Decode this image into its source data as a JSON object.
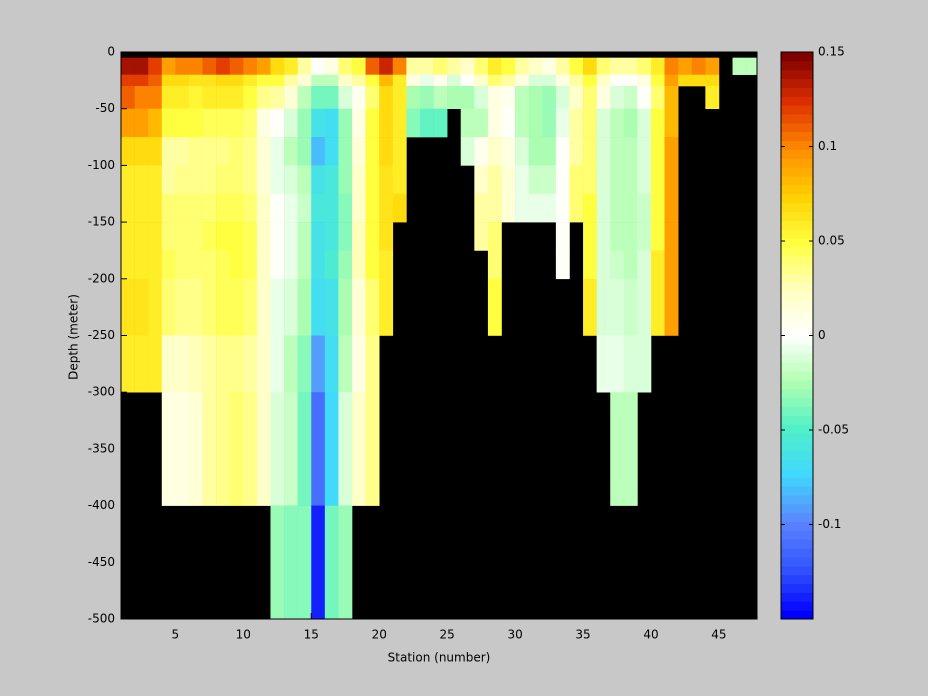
{
  "chart_data": {
    "type": "heatmap",
    "xlabel": "Station (number)",
    "ylabel": "Depth (meter)",
    "x": [
      1,
      2,
      3,
      4,
      5,
      6,
      7,
      8,
      9,
      10,
      11,
      12,
      13,
      14,
      15,
      16,
      17,
      18,
      19,
      20,
      21,
      22,
      23,
      24,
      25,
      26,
      27,
      28,
      29,
      30,
      31,
      32,
      33,
      34,
      35,
      36,
      37,
      38,
      39,
      40,
      41,
      42,
      43,
      44,
      45,
      46,
      47
    ],
    "y_edges": [
      -5,
      -20,
      -30,
      -50,
      -75,
      -100,
      -125,
      -150,
      -175,
      -200,
      -250,
      -300,
      -400,
      -500
    ],
    "z": [
      [
        0.14,
        0.12,
        0.11,
        0.09,
        0.07,
        0.06,
        0.06,
        0.06,
        0.06,
        0.065,
        0.06,
        null,
        null
      ],
      [
        0.14,
        0.12,
        0.1,
        0.09,
        0.07,
        0.06,
        0.06,
        0.06,
        0.06,
        0.065,
        0.06,
        null,
        null
      ],
      [
        0.12,
        0.11,
        0.1,
        0.08,
        0.07,
        0.06,
        0.06,
        0.06,
        0.06,
        0.06,
        0.06,
        null,
        null
      ],
      [
        0.09,
        0.07,
        0.06,
        0.05,
        0.03,
        0.03,
        0.04,
        0.04,
        0.045,
        0.04,
        0.02,
        0.01,
        null
      ],
      [
        0.1,
        0.07,
        0.06,
        0.05,
        0.03,
        0.035,
        0.04,
        0.04,
        0.04,
        0.035,
        0.02,
        0.01,
        null
      ],
      [
        0.1,
        0.065,
        0.055,
        0.05,
        0.035,
        0.035,
        0.04,
        0.04,
        0.04,
        0.035,
        0.025,
        0.015,
        null
      ],
      [
        0.11,
        0.065,
        0.06,
        0.045,
        0.035,
        0.035,
        0.04,
        0.045,
        0.04,
        0.04,
        0.03,
        0.03,
        null
      ],
      [
        0.12,
        0.07,
        0.06,
        0.045,
        0.035,
        0.04,
        0.045,
        0.05,
        0.045,
        0.045,
        0.035,
        0.035,
        null
      ],
      [
        0.11,
        0.07,
        0.06,
        0.045,
        0.04,
        0.04,
        0.045,
        0.05,
        0.05,
        0.045,
        0.035,
        0.04,
        null
      ],
      [
        0.1,
        0.06,
        0.05,
        0.04,
        0.035,
        0.035,
        0.04,
        0.045,
        0.045,
        0.04,
        0.03,
        0.035,
        null
      ],
      [
        0.09,
        0.05,
        0.035,
        0.01,
        0.015,
        0.015,
        0.02,
        0.02,
        0.02,
        0.02,
        0.02,
        0.02,
        null
      ],
      [
        0.07,
        0.05,
        0.03,
        0.0,
        -0.005,
        -0.005,
        0,
        0,
        0,
        -0.005,
        -0.005,
        -0.01,
        -0.03
      ],
      [
        0.06,
        0.03,
        0.015,
        -0.01,
        -0.02,
        -0.01,
        -0.005,
        -0.005,
        -0.005,
        -0.01,
        -0.02,
        -0.015,
        -0.035
      ],
      [
        0.03,
        0.015,
        -0.02,
        -0.03,
        -0.03,
        -0.02,
        -0.015,
        -0.02,
        -0.02,
        -0.025,
        -0.035,
        -0.04,
        -0.035
      ],
      [
        0.0,
        -0.02,
        -0.04,
        -0.065,
        -0.08,
        -0.065,
        -0.06,
        -0.065,
        -0.065,
        -0.07,
        -0.09,
        -0.11,
        -0.14
      ],
      [
        0.01,
        -0.02,
        -0.04,
        -0.07,
        -0.07,
        -0.06,
        -0.06,
        -0.06,
        -0.055,
        -0.065,
        -0.07,
        -0.075,
        -0.04
      ],
      [
        0.04,
        0.02,
        -0.01,
        -0.03,
        -0.03,
        -0.03,
        -0.035,
        -0.035,
        -0.03,
        -0.025,
        -0.02,
        -0.01,
        -0.03
      ],
      [
        0.05,
        0.03,
        0.005,
        0.01,
        0.015,
        0.02,
        0.02,
        0.025,
        0.025,
        0.015,
        0.01,
        0.02,
        null
      ],
      [
        0.11,
        0.05,
        0.04,
        0.05,
        0.05,
        0.05,
        0.05,
        0.05,
        0.05,
        0.04,
        0.035,
        0.035,
        null
      ],
      [
        0.13,
        0.08,
        0.07,
        0.07,
        0.07,
        0.065,
        0.065,
        0.065,
        0.06,
        0.06,
        null,
        null,
        null
      ],
      [
        0.1,
        0.06,
        0.06,
        0.06,
        0.06,
        0.06,
        0.07,
        null,
        null,
        null,
        null,
        null,
        null
      ],
      [
        0.03,
        0.01,
        -0.025,
        -0.035,
        null,
        null,
        null,
        null,
        null,
        null,
        null,
        null,
        null
      ],
      [
        0.03,
        -0.005,
        -0.03,
        -0.045,
        null,
        null,
        null,
        null,
        null,
        null,
        null,
        null,
        null
      ],
      [
        0.04,
        0.005,
        -0.02,
        -0.045,
        null,
        null,
        null,
        null,
        null,
        null,
        null,
        null,
        null
      ],
      [
        0.03,
        -0.01,
        -0.025,
        null,
        null,
        null,
        null,
        null,
        null,
        null,
        null,
        null,
        null
      ],
      [
        0.02,
        0.0,
        -0.025,
        -0.02,
        -0.01,
        null,
        null,
        null,
        null,
        null,
        null,
        null,
        null
      ],
      [
        0.04,
        0.02,
        -0.01,
        -0.02,
        0.005,
        0.02,
        0.03,
        0.03,
        null,
        null,
        null,
        null,
        null
      ],
      [
        0.06,
        0.04,
        0.01,
        0.01,
        0.02,
        0.03,
        0.03,
        0.04,
        0.04,
        0.05,
        null,
        null,
        null
      ],
      [
        0.05,
        0.03,
        0.005,
        0.0,
        0.01,
        0.015,
        0.015,
        null,
        null,
        null,
        null,
        null,
        null
      ],
      [
        0.03,
        0.01,
        -0.02,
        -0.02,
        -0.01,
        -0.005,
        -0.005,
        null,
        null,
        null,
        null,
        null,
        null
      ],
      [
        0.02,
        -0.01,
        -0.025,
        -0.025,
        -0.025,
        -0.015,
        -0.005,
        null,
        null,
        null,
        null,
        null,
        null
      ],
      [
        0.01,
        -0.01,
        -0.03,
        -0.03,
        -0.025,
        -0.015,
        -0.005,
        null,
        null,
        null,
        null,
        null,
        null
      ],
      [
        0.03,
        0.01,
        -0.01,
        -0.005,
        0.0,
        0.0,
        0.0,
        0.0,
        0.0,
        null,
        null,
        null,
        null
      ],
      [
        0.05,
        0.03,
        0.02,
        0.03,
        0.03,
        0.04,
        0.04,
        null,
        null,
        null,
        null,
        null,
        null
      ],
      [
        0.07,
        0.05,
        0.04,
        0.04,
        0.04,
        0.04,
        0.05,
        0.05,
        0.05,
        0.06,
        null,
        null,
        null
      ],
      [
        0.04,
        0.02,
        0.01,
        -0.01,
        -0.01,
        -0.01,
        -0.01,
        -0.01,
        -0.01,
        -0.01,
        -0.005,
        null,
        null
      ],
      [
        0.03,
        0.0,
        -0.01,
        -0.02,
        -0.02,
        -0.02,
        -0.02,
        -0.02,
        -0.015,
        -0.01,
        -0.005,
        -0.02,
        null
      ],
      [
        0.03,
        0.0,
        -0.015,
        -0.025,
        -0.02,
        -0.02,
        -0.02,
        -0.02,
        -0.02,
        -0.015,
        -0.01,
        -0.02,
        null
      ],
      [
        0.04,
        0.01,
        0.0,
        -0.01,
        -0.01,
        -0.01,
        -0.015,
        -0.015,
        -0.01,
        -0.01,
        -0.01,
        null,
        null
      ],
      [
        0.06,
        0.05,
        0.04,
        0.05,
        0.05,
        0.05,
        0.05,
        0.05,
        0.06,
        0.06,
        null,
        null,
        null
      ],
      [
        0.1,
        0.09,
        0.08,
        0.08,
        0.09,
        0.09,
        0.09,
        0.09,
        0.09,
        0.09,
        null,
        null,
        null
      ],
      [
        0.09,
        0.07,
        null,
        null,
        null,
        null,
        null,
        null,
        null,
        null,
        null,
        null,
        null
      ],
      [
        0.1,
        0.07,
        null,
        null,
        null,
        null,
        null,
        null,
        null,
        null,
        null,
        null,
        null
      ],
      [
        0.09,
        0.07,
        0.06,
        null,
        null,
        null,
        null,
        null,
        null,
        null,
        null,
        null,
        null
      ],
      [
        null,
        null,
        null,
        null,
        null,
        null,
        null,
        null,
        null,
        null,
        null,
        null,
        null
      ],
      [
        -0.02,
        null,
        null,
        null,
        null,
        null,
        null,
        null,
        null,
        null,
        null,
        null,
        null
      ],
      [
        -0.02,
        null,
        null,
        null,
        null,
        null,
        null,
        null,
        null,
        null,
        null,
        null,
        null
      ]
    ],
    "xlim": [
      1,
      47.8
    ],
    "xticks": [
      5,
      10,
      15,
      20,
      25,
      30,
      35,
      40,
      45
    ],
    "ylim": [
      -500,
      0
    ],
    "yticks": [
      0,
      -50,
      -100,
      -150,
      -200,
      -250,
      -300,
      -350,
      -400,
      -450,
      -500
    ],
    "clim": [
      -0.15,
      0.15
    ],
    "cticks": [
      -0.1,
      -0.05,
      0,
      0.05,
      0.1,
      0.15
    ],
    "colormap": [
      "#0000ff",
      "#3355ff",
      "#5a85ff",
      "#40d8ff",
      "#50f0c8",
      "#b0ffb0",
      "#ffffff",
      "#ffffc0",
      "#ffff40",
      "#ffd000",
      "#ff8c00",
      "#e03000",
      "#800000"
    ],
    "missing_color": "#000000"
  }
}
